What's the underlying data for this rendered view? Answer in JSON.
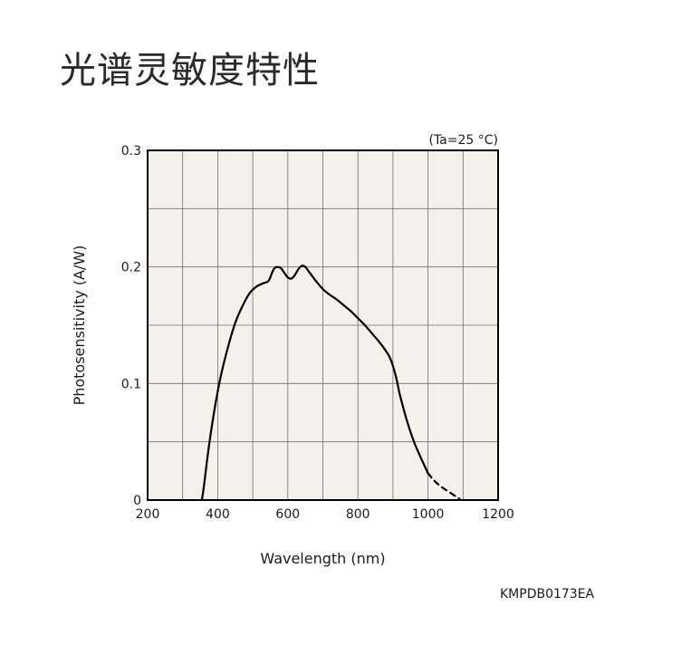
{
  "title": "光谱灵敏度特性",
  "figure_code": "KMPDB0173EA",
  "chart_data": {
    "type": "line",
    "condition_label": "(Ta=25 °C)",
    "xlabel": "Wavelength (nm)",
    "ylabel": "Photosensitivity (A/W)",
    "xlim": [
      200,
      1200
    ],
    "ylim": [
      0,
      0.3
    ],
    "x_tick_values": [
      200,
      400,
      600,
      800,
      1000,
      1200
    ],
    "x_tick_labels": [
      "200",
      "400",
      "600",
      "800",
      "1000",
      "1200"
    ],
    "y_tick_values": [
      0,
      0.1,
      0.2,
      0.3
    ],
    "y_tick_labels": [
      "0",
      "0.1",
      "0.2",
      "0.3"
    ],
    "grid": true,
    "grid_x_step": 100,
    "grid_y_step": 0.05,
    "plot_background": "#f3f2ea",
    "line_color": "#000000",
    "series": [
      {
        "style": "solid",
        "x": [
          355,
          362,
          370,
          380,
          395,
          410,
          430,
          450,
          470,
          490,
          510,
          530,
          545,
          555,
          562,
          570,
          580,
          590,
          600,
          610,
          620,
          630,
          640,
          650,
          660,
          670,
          680,
          700,
          720,
          740,
          760,
          780,
          800,
          820,
          840,
          860,
          875,
          890,
          900,
          910,
          920,
          940,
          960,
          980,
          1000
        ],
        "y": [
          0.0,
          0.015,
          0.035,
          0.057,
          0.085,
          0.108,
          0.132,
          0.152,
          0.166,
          0.177,
          0.183,
          0.186,
          0.188,
          0.195,
          0.199,
          0.2,
          0.199,
          0.195,
          0.191,
          0.19,
          0.193,
          0.198,
          0.201,
          0.2,
          0.196,
          0.192,
          0.188,
          0.181,
          0.176,
          0.172,
          0.167,
          0.162,
          0.156,
          0.15,
          0.143,
          0.136,
          0.13,
          0.123,
          0.115,
          0.104,
          0.09,
          0.068,
          0.05,
          0.036,
          0.023
        ]
      },
      {
        "style": "dashed",
        "x": [
          1000,
          1020,
          1040,
          1060,
          1080,
          1090
        ],
        "y": [
          0.023,
          0.016,
          0.011,
          0.007,
          0.003,
          0.001
        ]
      }
    ]
  }
}
